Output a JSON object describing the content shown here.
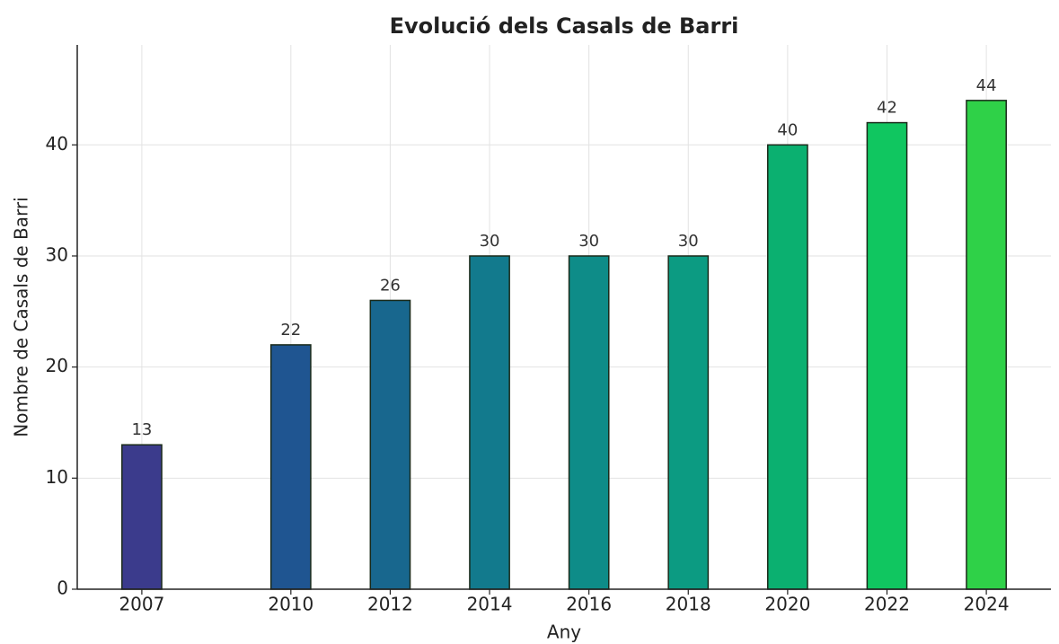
{
  "chart_data": {
    "type": "bar",
    "title": "Evolució dels Casals de Barri",
    "x_label": "Any",
    "y_label": "Nombre de Casals de Barri",
    "x": [
      2007,
      2010,
      2012,
      2014,
      2016,
      2018,
      2020,
      2022,
      2024
    ],
    "values": [
      13,
      22,
      26,
      30,
      30,
      30,
      40,
      42,
      44
    ],
    "colors": [
      "#3b3b8c",
      "#1f5591",
      "#18678e",
      "#127a8d",
      "#0e8c88",
      "#0c9b82",
      "#0bb070",
      "#10c660",
      "#2fd148"
    ],
    "xlim": [
      2005.7,
      2025.3
    ],
    "xticks": [
      2007,
      2010,
      2012,
      2014,
      2016,
      2018,
      2020,
      2022,
      2024
    ],
    "ylim": [
      0,
      49
    ],
    "yticks": [
      0,
      10,
      20,
      30,
      40
    ],
    "grid": true
  }
}
